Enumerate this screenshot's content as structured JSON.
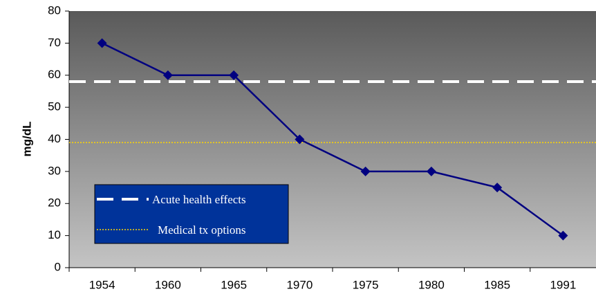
{
  "chart_data": {
    "type": "line",
    "y_label": "mg/dL",
    "categories": [
      "1954",
      "1960",
      "1965",
      "1970",
      "1975",
      "1980",
      "1985",
      "1991"
    ],
    "values": [
      70,
      60,
      60,
      40,
      30,
      30,
      25,
      10
    ],
    "color": "#000080",
    "ylim": [
      0,
      80
    ],
    "yticks": [
      0,
      10,
      20,
      30,
      40,
      50,
      60,
      70,
      80
    ],
    "reference_lines": [
      {
        "name": "Acute health effects",
        "value": 58,
        "color": "#ffffff",
        "style": "dashed"
      },
      {
        "name": "Medical tx options",
        "value": 39,
        "color": "#ffd700",
        "style": "dotted"
      }
    ]
  }
}
